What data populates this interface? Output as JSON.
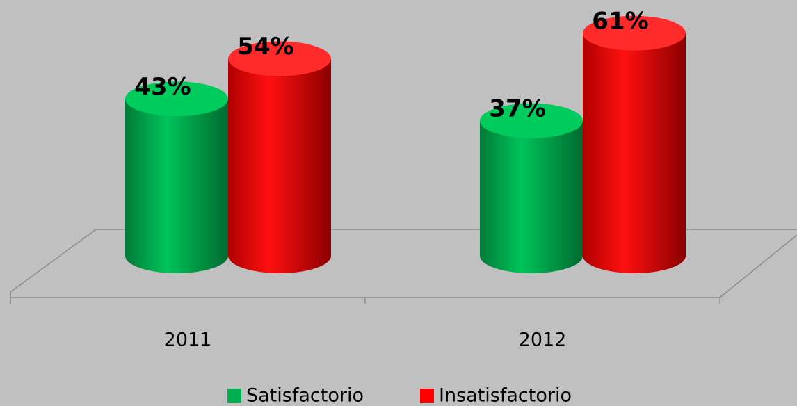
{
  "chart_data": {
    "type": "bar",
    "categories": [
      "2011",
      "2012"
    ],
    "series": [
      {
        "name": "Satisfactorio",
        "color": "#00b050",
        "values": [
          43,
          37
        ],
        "value_labels": [
          "43%",
          "37%"
        ]
      },
      {
        "name": "Insatisfactorio",
        "color": "#ff0000",
        "values": [
          54,
          61
        ],
        "value_labels": [
          "54%",
          "61%"
        ]
      }
    ]
  }
}
